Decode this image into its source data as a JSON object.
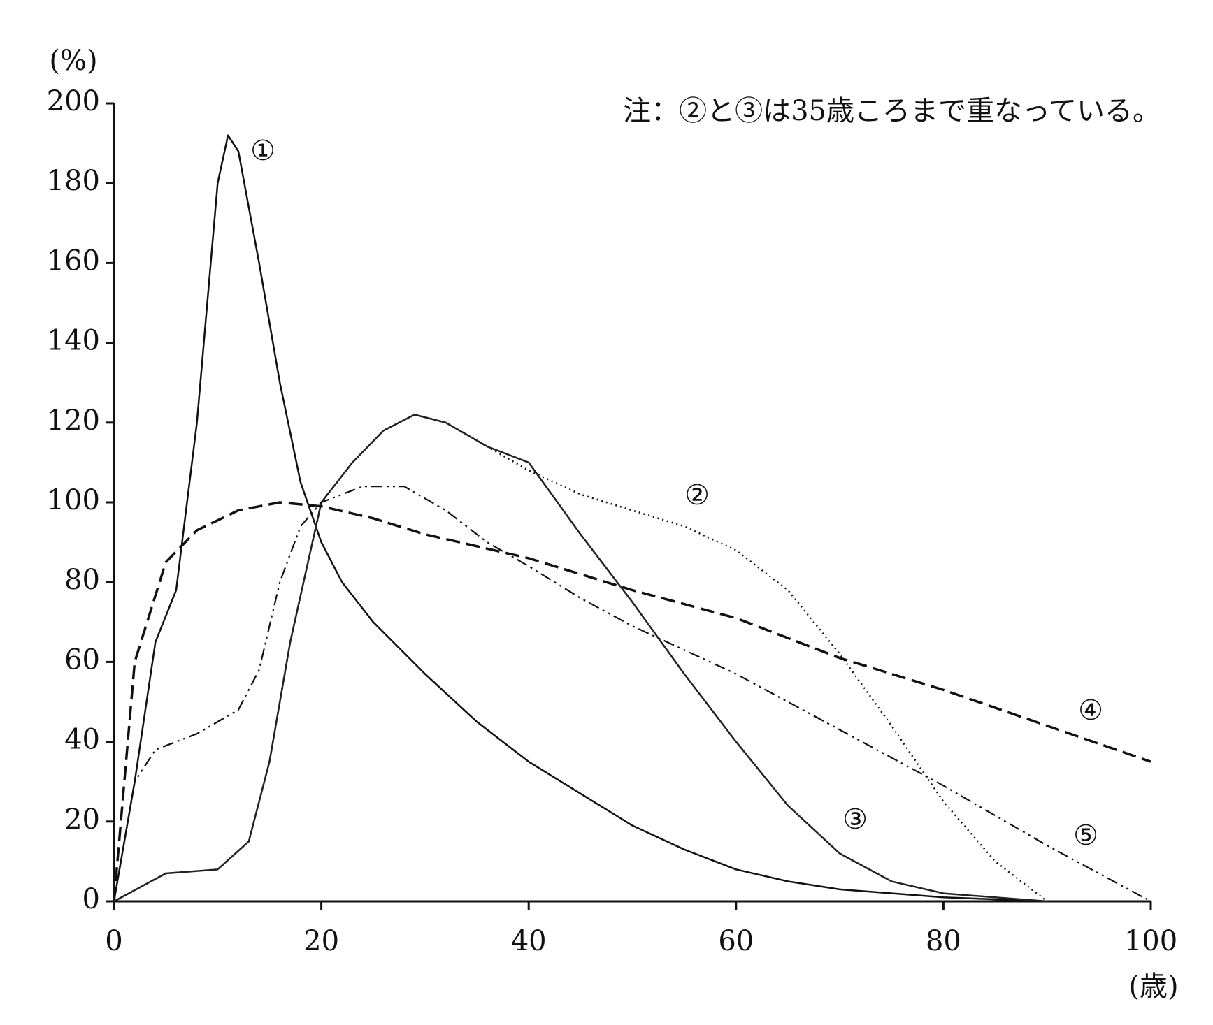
{
  "chart_data": {
    "type": "line",
    "annotation": "注：②と③は35歳ころまで重なっている。",
    "y_label": "(%)",
    "x_label": "(歳)",
    "xlim": [
      0,
      100
    ],
    "xticks": [
      0,
      20,
      40,
      60,
      80,
      100
    ],
    "ylim": [
      0,
      200
    ],
    "yticks": [
      0,
      20,
      40,
      60,
      80,
      100,
      120,
      140,
      160,
      180,
      200
    ],
    "grid": false,
    "series": [
      {
        "name": "①",
        "color": "#111111",
        "dash": "solid",
        "x": [
          0,
          2,
          4,
          6,
          8,
          10,
          11,
          12,
          14,
          16,
          18,
          20,
          22,
          25,
          30,
          35,
          40,
          45,
          50,
          55,
          60,
          65,
          70,
          80,
          90
        ],
        "values": [
          0,
          30,
          65,
          78,
          120,
          180,
          192,
          188,
          160,
          130,
          105,
          90,
          80,
          70,
          57,
          45,
          35,
          27,
          19,
          13,
          8,
          5,
          3,
          1,
          0
        ]
      },
      {
        "name": "②",
        "color": "#111111",
        "dash": "dotted",
        "x": [
          0,
          5,
          10,
          13,
          15,
          17,
          20,
          23,
          26,
          29,
          32,
          36,
          40,
          45,
          50,
          55,
          60,
          65,
          70,
          75,
          80,
          85,
          90
        ],
        "values": [
          0,
          7,
          8,
          15,
          35,
          65,
          100,
          110,
          118,
          122,
          120,
          114,
          108,
          102,
          98,
          94,
          88,
          78,
          62,
          44,
          25,
          10,
          0
        ]
      },
      {
        "name": "③",
        "color": "#222222",
        "dash": "solid",
        "x": [
          0,
          5,
          10,
          13,
          15,
          17,
          20,
          23,
          26,
          29,
          32,
          36,
          40,
          45,
          50,
          55,
          60,
          65,
          70,
          75,
          80,
          90
        ],
        "values": [
          0,
          7,
          8,
          15,
          35,
          65,
          100,
          110,
          118,
          122,
          120,
          114,
          110,
          92,
          75,
          57,
          40,
          24,
          12,
          5,
          2,
          0
        ]
      },
      {
        "name": "④",
        "color": "#111111",
        "dash": "dashed",
        "x": [
          0,
          2,
          5,
          8,
          12,
          16,
          20,
          25,
          30,
          40,
          50,
          60,
          70,
          80,
          90,
          100
        ],
        "values": [
          0,
          60,
          85,
          93,
          98,
          100,
          99,
          96,
          92,
          86,
          78,
          71,
          61,
          53,
          44,
          35
        ]
      },
      {
        "name": "⑤",
        "color": "#111111",
        "dash": "dashdotdot",
        "x": [
          0,
          2,
          4,
          8,
          12,
          14,
          16,
          18,
          20,
          24,
          28,
          32,
          36,
          40,
          45,
          50,
          55,
          60,
          70,
          80,
          90,
          100
        ],
        "values": [
          0,
          30,
          38,
          42,
          48,
          58,
          80,
          94,
          100,
          104,
          104,
          98,
          90,
          84,
          76,
          69,
          63,
          57,
          43,
          29,
          14,
          0
        ]
      }
    ]
  }
}
